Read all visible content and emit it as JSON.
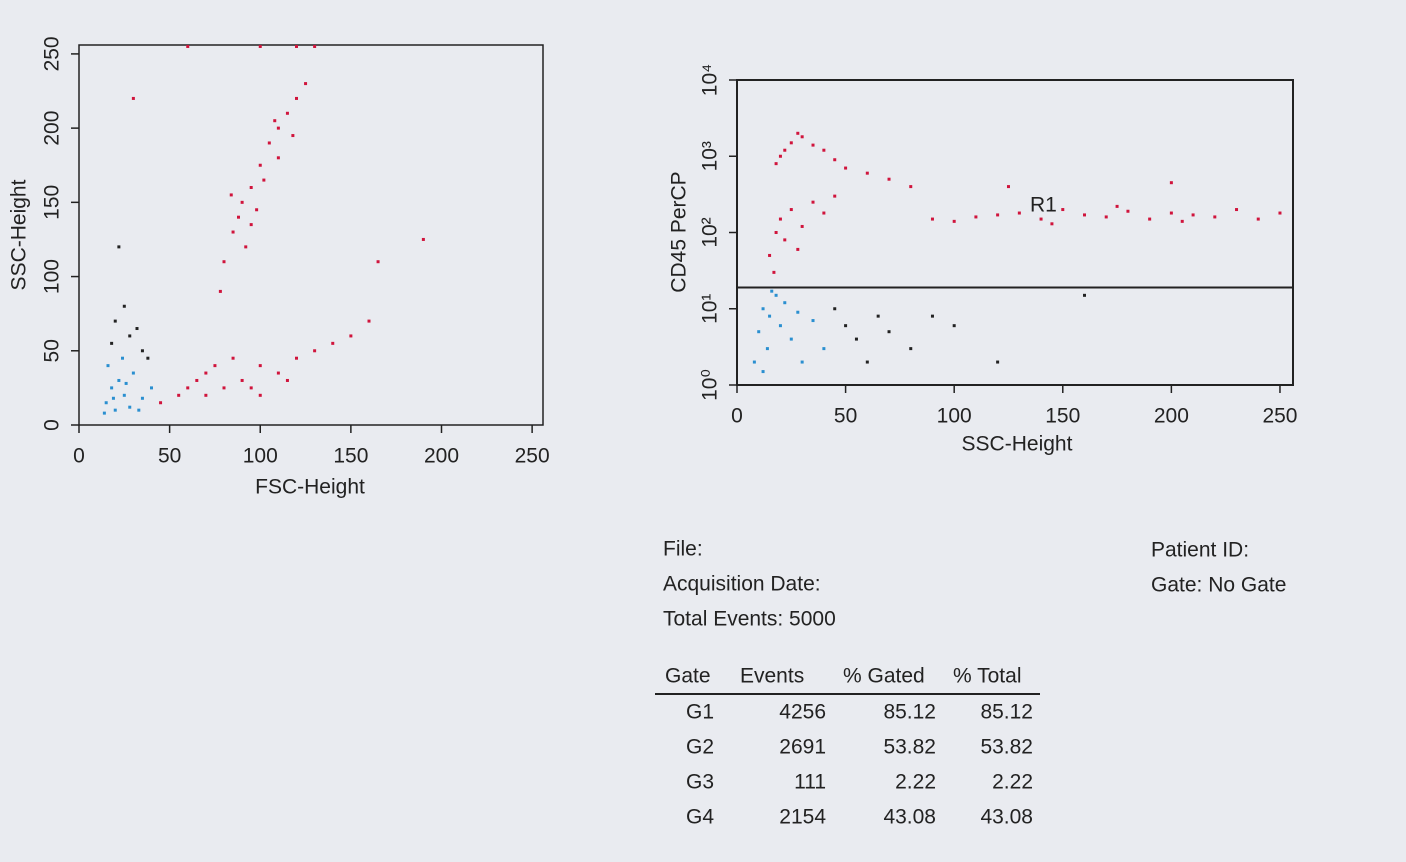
{
  "chart_data": [
    {
      "type": "scatter",
      "xlabel": "FSC-Height",
      "ylabel": "SSC-Height",
      "xlim": [
        0,
        256
      ],
      "ylim": [
        0,
        256
      ],
      "xticks": [
        0,
        50,
        100,
        150,
        200,
        250
      ],
      "yticks": [
        0,
        50,
        100,
        150,
        200,
        250
      ],
      "series": [
        {
          "color": "#d0143c",
          "x": [
            80,
            85,
            90,
            95,
            100,
            105,
            110,
            115,
            120,
            88,
            92,
            98,
            102,
            78,
            110,
            84,
            95,
            108,
            118,
            125,
            45,
            55,
            60,
            65,
            70,
            75,
            80,
            90,
            100,
            110,
            120,
            130,
            140,
            150,
            160,
            100,
            85,
            95,
            115,
            70,
            100,
            120,
            130,
            60,
            190,
            30,
            165
          ],
          "values": [
            110,
            130,
            150,
            160,
            175,
            190,
            200,
            210,
            220,
            140,
            120,
            145,
            165,
            90,
            180,
            155,
            135,
            205,
            195,
            230,
            15,
            20,
            25,
            30,
            35,
            40,
            25,
            30,
            40,
            35,
            45,
            50,
            55,
            60,
            70,
            20,
            45,
            25,
            30,
            20,
            255,
            255,
            255,
            255,
            125,
            220,
            110
          ]
        },
        {
          "color": "#2a8fd0",
          "x": [
            15,
            18,
            20,
            22,
            25,
            28,
            30,
            16,
            35,
            40,
            14,
            24,
            19,
            33,
            26
          ],
          "values": [
            15,
            25,
            10,
            30,
            20,
            12,
            35,
            40,
            18,
            25,
            8,
            45,
            18,
            10,
            28
          ]
        },
        {
          "color": "#222222",
          "x": [
            18,
            20,
            25,
            28,
            32,
            35,
            22,
            38
          ],
          "values": [
            55,
            70,
            80,
            60,
            65,
            50,
            120,
            45
          ]
        }
      ]
    },
    {
      "type": "scatter",
      "xlabel": "SSC-Height",
      "ylabel": "CD45 PerCP",
      "log_y": true,
      "xlim": [
        0,
        256
      ],
      "ylim": [
        1,
        10000
      ],
      "xticks": [
        0,
        50,
        100,
        150,
        200,
        250
      ],
      "yticks": [
        {
          "value": 1,
          "label": "10⁰"
        },
        {
          "value": 10,
          "label": "10¹"
        },
        {
          "value": 100,
          "label": "10²"
        },
        {
          "value": 1000,
          "label": "10³"
        },
        {
          "value": 10000,
          "label": "10⁴"
        }
      ],
      "regions": [
        {
          "label": "R1",
          "y_min": 19
        }
      ],
      "series": [
        {
          "color": "#d0143c",
          "x": [
            18,
            22,
            25,
            30,
            35,
            40,
            28,
            20,
            45,
            50,
            60,
            70,
            80,
            15,
            18,
            20,
            25,
            30,
            35,
            40,
            22,
            28,
            45,
            17,
            90,
            100,
            110,
            120,
            130,
            140,
            150,
            160,
            170,
            180,
            190,
            200,
            210,
            220,
            230,
            240,
            250,
            145,
            175,
            205,
            125,
            200
          ],
          "values": [
            800,
            1200,
            1500,
            1800,
            1400,
            1200,
            2000,
            1000,
            900,
            700,
            600,
            500,
            400,
            50,
            100,
            150,
            200,
            120,
            250,
            180,
            80,
            60,
            300,
            30,
            150,
            140,
            160,
            170,
            180,
            150,
            200,
            170,
            160,
            190,
            150,
            180,
            170,
            160,
            200,
            150,
            180,
            130,
            220,
            140,
            400,
            450
          ]
        },
        {
          "color": "#2a8fd0",
          "x": [
            8,
            10,
            12,
            14,
            15,
            18,
            20,
            22,
            25,
            28,
            30,
            35,
            40,
            12,
            16
          ],
          "values": [
            2,
            5,
            10,
            3,
            8,
            15,
            6,
            12,
            4,
            9,
            2,
            7,
            3,
            1.5,
            17
          ]
        },
        {
          "color": "#222222",
          "x": [
            45,
            50,
            55,
            60,
            65,
            70,
            80,
            90,
            100,
            120,
            160
          ],
          "values": [
            10,
            6,
            4,
            2,
            8,
            5,
            3,
            8,
            6,
            2,
            15
          ]
        }
      ]
    }
  ],
  "info": {
    "file": "File:",
    "date": "Acquisition Date:",
    "events": "Total Events: 5000",
    "patient": "Patient ID:",
    "gate": "Gate: No Gate"
  },
  "table": {
    "header": [
      "Gate",
      "Events",
      "% Gated",
      "% Total"
    ],
    "rows": [
      [
        "G1",
        4256,
        85.12,
        85.12
      ],
      [
        "G2",
        2691,
        53.82,
        53.82
      ],
      [
        "G3",
        111,
        2.22,
        2.22
      ],
      [
        "G4",
        2154,
        43.08,
        43.08
      ]
    ]
  }
}
